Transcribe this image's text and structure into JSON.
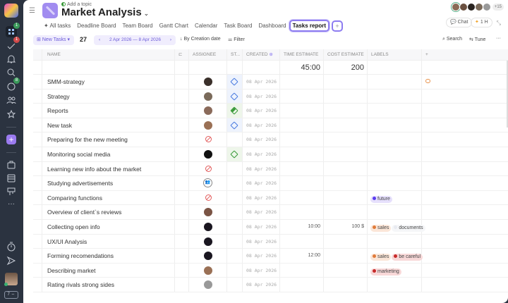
{
  "sidebar": {
    "badges": {
      "home": "1",
      "tasks": "1",
      "chat": "8"
    },
    "footer": "7 ⇔"
  },
  "header": {
    "topic": "Add a topic",
    "title": "Market Analysis",
    "chevron": "⌄",
    "extra_count": "+15",
    "chat": "Chat",
    "timer": "1 H"
  },
  "tabs": [
    {
      "label": "✦ All tasks"
    },
    {
      "label": "Deadline Board"
    },
    {
      "label": "Team Board"
    },
    {
      "label": "Gantt Chart"
    },
    {
      "label": "Calendar"
    },
    {
      "label": "Task Board"
    },
    {
      "label": "Dashboard"
    },
    {
      "label": "Tasks report",
      "active": true
    }
  ],
  "tab_add": "+",
  "toolbar": {
    "new_tasks": "New Tasks",
    "count": "27",
    "date_range": "2 Apr 2026 — 8 Apr 2026",
    "sort": "By Creation date",
    "filter": "Filter",
    "search": "Search",
    "tune": "Tune",
    "more": "···"
  },
  "columns": {
    "name": "NAME",
    "assignee": "ASSIGNEE",
    "status": "ST...",
    "created": "CREATED",
    "time": "TIME ESTIMATE",
    "cost": "COST ESTIMATE",
    "labels": "LABELS",
    "add": "+"
  },
  "summary": {
    "time": "45:00",
    "cost": "200"
  },
  "colors": {
    "accent": "#8d7cf0",
    "sidebar": "#2b3340",
    "status_blue": "#4a7be0",
    "status_green": "#3a9a3a"
  },
  "rows": [
    {
      "name": "SMM-strategy",
      "assignee": "person",
      "avatar": "#3a2f2a",
      "status": "blue",
      "created": "08 Apr 2026",
      "comment": true
    },
    {
      "name": "Strategy",
      "assignee": "person",
      "avatar": "#7a6a5a",
      "status": "blue",
      "created": "08 Apr 2026"
    },
    {
      "name": "Reports",
      "assignee": "person",
      "avatar": "#8a6a5a",
      "status": "green-progress",
      "created": "08 Apr 2026"
    },
    {
      "name": "New task",
      "assignee": "person",
      "avatar": "#9a7055",
      "status": "blue",
      "created": "08 Apr 2026"
    },
    {
      "name": "Preparing for the new meeting",
      "assignee": "none",
      "created": "08 Apr 2026"
    },
    {
      "name": "Monitoring social media",
      "assignee": "person",
      "avatar": "#111",
      "status": "green",
      "created": "08 Apr 2026"
    },
    {
      "name": "Learning new info about the market",
      "assignee": "none",
      "created": "08 Apr 2026"
    },
    {
      "name": "Studying advertisements",
      "assignee": "team",
      "created": "08 Apr 2026"
    },
    {
      "name": "Comparing functions",
      "assignee": "none",
      "created": "08 Apr 2026",
      "labels": [
        {
          "text": "future",
          "dot": "#5b3cf0",
          "bg": "#e6e0fc"
        }
      ]
    },
    {
      "name": "Overview of client`s reviews",
      "assignee": "person",
      "avatar": "#7a5444",
      "created": "08 Apr 2026"
    },
    {
      "name": "Collecting open info",
      "assignee": "person",
      "avatar": "#1a1620",
      "created": "08 Apr 2026",
      "time": "10:00",
      "cost": "100 $",
      "labels": [
        {
          "text": "sales",
          "dot": "#e07b3a",
          "bg": "#fbe6d8"
        },
        {
          "text": "documents",
          "dot": "#e8eaf0",
          "bg": "#f5f6f8"
        }
      ]
    },
    {
      "name": "UX/UI Analysis",
      "assignee": "person",
      "avatar": "#1a1620",
      "created": "08 Apr 2026"
    },
    {
      "name": "Forming recomendations",
      "assignee": "person",
      "avatar": "#1a1620",
      "created": "08 Apr 2026",
      "time": "12:00",
      "labels": [
        {
          "text": "sales",
          "dot": "#e07b3a",
          "bg": "#fbe6d8"
        },
        {
          "text": "be careful",
          "dot": "#c82a2a",
          "bg": "#f8d8d8"
        }
      ]
    },
    {
      "name": "Describing market",
      "assignee": "person",
      "avatar": "#9a7055",
      "created": "08 Apr 2026",
      "labels": [
        {
          "text": "marketing",
          "dot": "#c82a2a",
          "bg": "#f8d8d8"
        }
      ]
    },
    {
      "name": "Rating rivals strong sides",
      "assignee": "person",
      "avatar": "#999",
      "created": "08 Apr 2026"
    }
  ]
}
